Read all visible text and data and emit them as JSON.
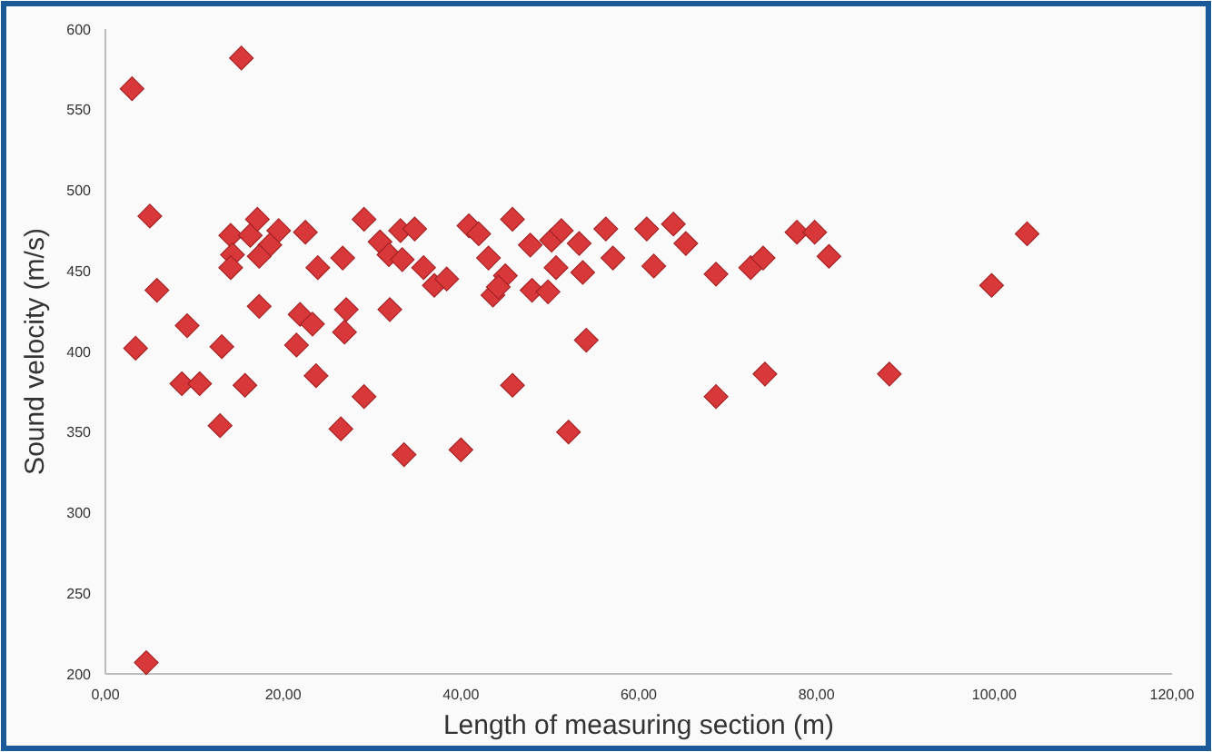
{
  "chart_data": {
    "type": "scatter",
    "xlabel": "Length of measuring section (m)",
    "ylabel": "Sound velocity (m/s)",
    "xlim": [
      0,
      120
    ],
    "ylim": [
      200,
      600
    ],
    "xticks": [
      {
        "value": 0,
        "label": "0,00"
      },
      {
        "value": 20,
        "label": "20,00"
      },
      {
        "value": 40,
        "label": "40,00"
      },
      {
        "value": 60,
        "label": "60,00"
      },
      {
        "value": 80,
        "label": "80,00"
      },
      {
        "value": 100,
        "label": "100,00"
      },
      {
        "value": 120,
        "label": "120,00"
      }
    ],
    "yticks": [
      200,
      250,
      300,
      350,
      400,
      450,
      500,
      550,
      600
    ],
    "grid": false,
    "marker": "diamond",
    "series": [
      {
        "color": "#d9383a",
        "x": [
          3.0,
          15.3,
          5.0,
          5.8,
          3.4,
          9.2,
          8.6,
          10.6,
          13.1,
          12.9,
          15.7,
          4.6,
          14.1,
          16.3,
          17.1,
          19.5,
          18.5,
          14.3,
          14.1,
          17.3,
          22.5,
          23.9,
          26.7,
          29.1,
          30.9,
          17.3,
          21.9,
          23.3,
          21.5,
          27.1,
          26.9,
          23.7,
          29.1,
          26.5,
          32.0,
          33.2,
          34.8,
          31.9,
          33.4,
          35.8,
          37.0,
          38.4,
          40.9,
          42.0,
          45.8,
          43.1,
          45.0,
          43.6,
          44.2,
          47.8,
          50.2,
          51.3,
          53.3,
          50.7,
          53.7,
          48.0,
          49.8,
          56.3,
          57.1,
          60.9,
          61.7,
          63.9,
          54.1,
          45.8,
          52.1,
          33.6,
          40.0,
          65.3,
          68.7,
          72.6,
          74.0,
          77.8,
          79.8,
          81.4,
          103.7,
          99.7,
          68.7,
          74.2,
          88.2
        ],
        "values": [
          563,
          582,
          484,
          438,
          402,
          416,
          380,
          380,
          403,
          354,
          379,
          207,
          472,
          472,
          482,
          475,
          466,
          460,
          452,
          459,
          474,
          452,
          458,
          482,
          468,
          428,
          423,
          417,
          404,
          426,
          412,
          385,
          372,
          352,
          426,
          475,
          476,
          460,
          457,
          452,
          441,
          445,
          478,
          473,
          482,
          458,
          447,
          435,
          440,
          466,
          469,
          475,
          467,
          452,
          449,
          438,
          437,
          476,
          458,
          476,
          453,
          479,
          407,
          379,
          350,
          336,
          339,
          467,
          448,
          452,
          458,
          474,
          474,
          459,
          473,
          441,
          372,
          386,
          386
        ]
      }
    ]
  }
}
